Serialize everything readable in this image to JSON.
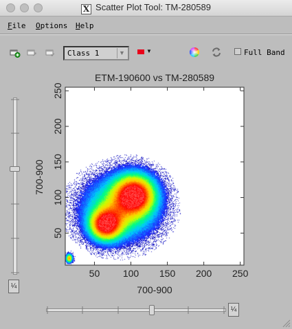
{
  "window": {
    "title": "Scatter Plot Tool: TM-280589"
  },
  "menu": {
    "items": [
      {
        "label": "File",
        "mnemonic": "F",
        "rest": "ile"
      },
      {
        "label": "Options",
        "mnemonic": "O",
        "rest": "ptions"
      },
      {
        "label": "Help",
        "mnemonic": "H",
        "rest": "elp"
      }
    ]
  },
  "toolbar": {
    "class_select_value": "Class 1",
    "class_color": "#e8001a",
    "full_band_label": "Full Band",
    "full_band_checked": false
  },
  "plot": {
    "title": "ETM-190600 vs TM-280589"
  },
  "slider_boxes": {
    "vertical_label": "¼",
    "horizontal_label": "¼"
  },
  "chart_data": {
    "type": "heatmap",
    "title": "ETM-190600 vs TM-280589",
    "xlabel": "700-900",
    "ylabel": "700-900",
    "xlim": [
      10,
      255
    ],
    "ylim": [
      5,
      255
    ],
    "xticks": [
      50,
      100,
      150,
      200,
      250
    ],
    "yticks": [
      50,
      100,
      150,
      200,
      250
    ],
    "grid": false,
    "colormap": [
      "#2020ff",
      "#00c8ff",
      "#00ff80",
      "#c8ff00",
      "#ffd000",
      "#ff6000",
      "#ff0000",
      "#ffffff"
    ],
    "density_clusters": [
      {
        "x": 105,
        "y": 105,
        "sx": 18,
        "sy": 18,
        "weight": 1.0
      },
      {
        "x": 65,
        "y": 62,
        "sx": 14,
        "sy": 14,
        "weight": 1.0
      },
      {
        "x": 85,
        "y": 85,
        "sx": 32,
        "sy": 28,
        "weight": 0.55
      },
      {
        "x": 15,
        "y": 15,
        "sx": 3,
        "sy": 4,
        "weight": 0.8
      }
    ]
  }
}
